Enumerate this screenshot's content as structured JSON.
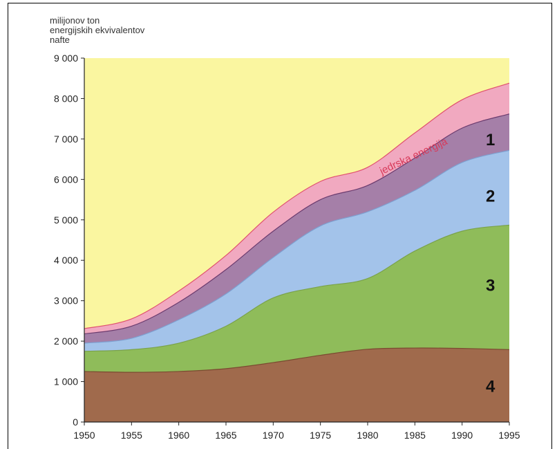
{
  "chart_data": {
    "type": "area",
    "stacked": true,
    "ylabel_lines": [
      "milijonov ton",
      "energijskih ekvivalentov",
      "nafte"
    ],
    "xlabel": "",
    "xlim": [
      1950,
      1995
    ],
    "ylim": [
      0,
      9000
    ],
    "x_ticks": [
      1950,
      1955,
      1960,
      1965,
      1970,
      1975,
      1980,
      1985,
      1990,
      1995
    ],
    "y_ticks": [
      {
        "value": 0,
        "label": "0"
      },
      {
        "value": 1000,
        "label": "1 000"
      },
      {
        "value": 2000,
        "label": "2 000"
      },
      {
        "value": 3000,
        "label": "3 000"
      },
      {
        "value": 4000,
        "label": "4 000"
      },
      {
        "value": 5000,
        "label": "5 000"
      },
      {
        "value": 6000,
        "label": "6 000"
      },
      {
        "value": 7000,
        "label": "7 000"
      },
      {
        "value": 8000,
        "label": "8 000"
      },
      {
        "value": 9000,
        "label": "9 000"
      }
    ],
    "x": [
      1950,
      1955,
      1960,
      1965,
      1970,
      1975,
      1980,
      1985,
      1990,
      1995
    ],
    "series": [
      {
        "name": "4",
        "color": "#a06a4c",
        "values": [
          1250,
          1230,
          1250,
          1320,
          1470,
          1650,
          1800,
          1830,
          1820,
          1790
        ]
      },
      {
        "name": "3",
        "color": "#8fbc5a",
        "values": [
          500,
          560,
          700,
          1050,
          1600,
          1700,
          1750,
          2400,
          2900,
          3080
        ]
      },
      {
        "name": "2",
        "color": "#a3c3ea",
        "values": [
          200,
          280,
          580,
          800,
          1000,
          1500,
          1650,
          1500,
          1700,
          1850
        ]
      },
      {
        "name": "1",
        "color": "#a57fa8",
        "values": [
          230,
          300,
          430,
          600,
          650,
          650,
          650,
          800,
          850,
          900
        ]
      },
      {
        "name": "jedrska energija",
        "color": "#f1a9c0",
        "values": [
          130,
          180,
          280,
          350,
          470,
          450,
          450,
          620,
          700,
          760
        ]
      }
    ],
    "background_color": "#faf6a0",
    "labels": [
      {
        "text": "1",
        "x": 1993,
        "y": 7000
      },
      {
        "text": "2",
        "x": 1993,
        "y": 5600
      },
      {
        "text": "3",
        "x": 1993,
        "y": 3400
      },
      {
        "text": "4",
        "x": 1993,
        "y": 900
      }
    ],
    "annotation": {
      "text": "jedrska energija",
      "x": 1985,
      "y": 6500
    }
  }
}
